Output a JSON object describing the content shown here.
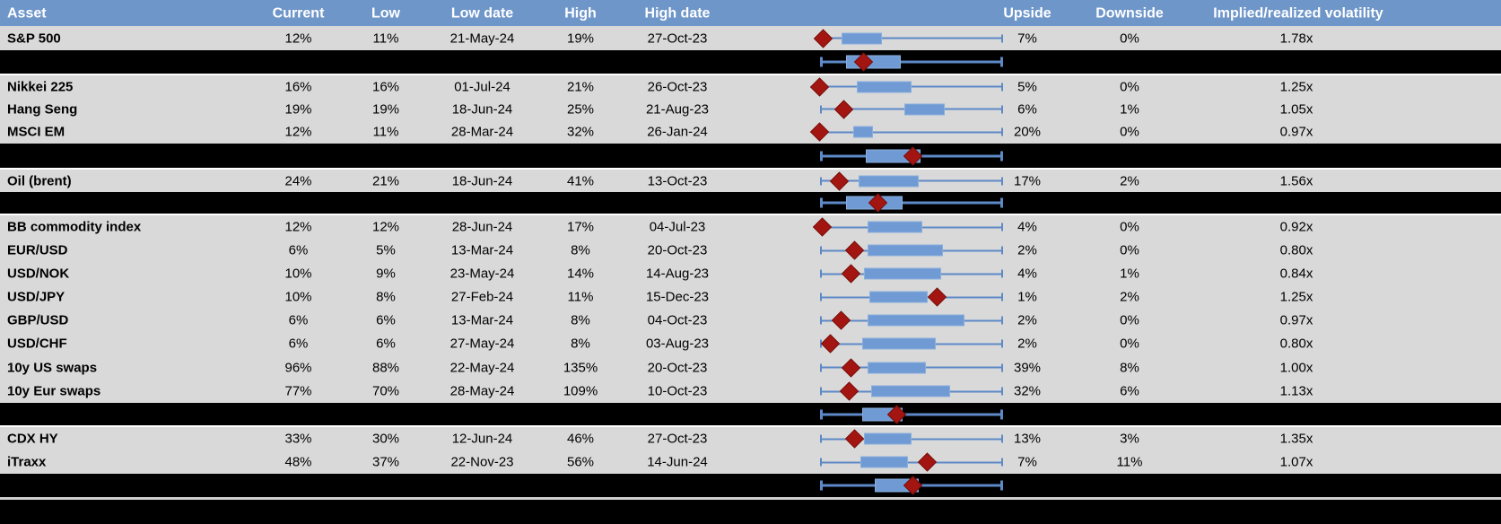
{
  "colors": {
    "header_bg": "#6e96c9",
    "header_text": "#ffffff",
    "row_bg": "#d9d9d9",
    "band_bg": "#000000",
    "box_fill": "#6f9ad3",
    "box_border": "#8aafdd",
    "whisker": "#5d89c7",
    "marker": "#a31511",
    "marker_border": "#76100c",
    "separator": "#cfcfcf"
  },
  "chart_data": {
    "type": "table",
    "columns": [
      "Asset",
      "Current",
      "Low",
      "Low date",
      "High",
      "High date",
      "Upside",
      "Downside",
      "Implied/realized volatility"
    ],
    "boxplot_units": "fraction of whisker span, 0 = left whisker end, 1 = right whisker end; marker = red diamond (current)",
    "rows": [
      {
        "kind": "asset",
        "cells": [
          "S&P 500",
          "12%",
          "11%",
          "21-May-24",
          "19%",
          "27-Oct-23",
          "7%",
          "0%",
          "1.78x"
        ],
        "box": {
          "whisker_lo": 0,
          "box_lo": 0.12,
          "box_hi": 0.34,
          "whisker_hi": 1,
          "marker": 0.02
        }
      },
      {
        "kind": "summary-chart",
        "cells": [],
        "box": {
          "whisker_lo": 0,
          "box_lo": 0.14,
          "box_hi": 0.44,
          "whisker_hi": 1,
          "marker": 0.24
        }
      },
      {
        "kind": "asset",
        "cells": [
          "Nikkei 225",
          "16%",
          "16%",
          "01-Jul-24",
          "21%",
          "26-Oct-23",
          "5%",
          "0%",
          "1.25x"
        ],
        "box": {
          "whisker_lo": 0,
          "box_lo": 0.2,
          "box_hi": 0.5,
          "whisker_hi": 1,
          "marker": 0.0
        }
      },
      {
        "kind": "asset",
        "cells": [
          "Hang Seng",
          "19%",
          "19%",
          "18-Jun-24",
          "25%",
          "21-Aug-23",
          "6%",
          "1%",
          "1.05x"
        ],
        "box": {
          "whisker_lo": 0,
          "box_lo": 0.46,
          "box_hi": 0.68,
          "whisker_hi": 1,
          "marker": 0.13
        }
      },
      {
        "kind": "asset",
        "cells": [
          "MSCI EM",
          "12%",
          "11%",
          "28-Mar-24",
          "32%",
          "26-Jan-24",
          "20%",
          "0%",
          "0.97x"
        ],
        "box": {
          "whisker_lo": 0,
          "box_lo": 0.18,
          "box_hi": 0.29,
          "whisker_hi": 1,
          "marker": 0.0
        }
      },
      {
        "kind": "summary-chart",
        "cells": [],
        "box": {
          "whisker_lo": 0,
          "box_lo": 0.25,
          "box_hi": 0.55,
          "whisker_hi": 1,
          "marker": 0.51
        }
      },
      {
        "kind": "asset",
        "cells": [
          "Oil (brent)",
          "24%",
          "21%",
          "18-Jun-24",
          "41%",
          "13-Oct-23",
          "17%",
          "2%",
          "1.56x"
        ],
        "box": {
          "whisker_lo": 0,
          "box_lo": 0.21,
          "box_hi": 0.54,
          "whisker_hi": 1,
          "marker": 0.11
        }
      },
      {
        "kind": "summary-chart",
        "cells": [],
        "box": {
          "whisker_lo": 0,
          "box_lo": 0.14,
          "box_hi": 0.45,
          "whisker_hi": 1,
          "marker": 0.32
        }
      },
      {
        "kind": "asset",
        "cells": [
          "BB commodity index",
          "12%",
          "12%",
          "28-Jun-24",
          "17%",
          "04-Jul-23",
          "4%",
          "0%",
          "0.92x"
        ],
        "box": {
          "whisker_lo": 0,
          "box_lo": 0.26,
          "box_hi": 0.56,
          "whisker_hi": 1,
          "marker": 0.015
        }
      },
      {
        "kind": "asset",
        "cells": [
          "EUR/USD",
          "6%",
          "5%",
          "13-Mar-24",
          "8%",
          "20-Oct-23",
          "2%",
          "0%",
          "0.80x"
        ],
        "box": {
          "whisker_lo": 0,
          "box_lo": 0.26,
          "box_hi": 0.67,
          "whisker_hi": 1,
          "marker": 0.19
        }
      },
      {
        "kind": "asset",
        "cells": [
          "USD/NOK",
          "10%",
          "9%",
          "23-May-24",
          "14%",
          "14-Aug-23",
          "4%",
          "1%",
          "0.84x"
        ],
        "box": {
          "whisker_lo": 0,
          "box_lo": 0.24,
          "box_hi": 0.66,
          "whisker_hi": 1,
          "marker": 0.17
        }
      },
      {
        "kind": "asset",
        "cells": [
          "USD/JPY",
          "10%",
          "8%",
          "27-Feb-24",
          "11%",
          "15-Dec-23",
          "1%",
          "2%",
          "1.25x"
        ],
        "box": {
          "whisker_lo": 0,
          "box_lo": 0.27,
          "box_hi": 0.59,
          "whisker_hi": 1,
          "marker": 0.64
        }
      },
      {
        "kind": "asset",
        "cells": [
          "GBP/USD",
          "6%",
          "6%",
          "13-Mar-24",
          "8%",
          "04-Oct-23",
          "2%",
          "0%",
          "0.97x"
        ],
        "box": {
          "whisker_lo": 0,
          "box_lo": 0.26,
          "box_hi": 0.79,
          "whisker_hi": 1,
          "marker": 0.12
        }
      },
      {
        "kind": "asset",
        "cells": [
          "USD/CHF",
          "6%",
          "6%",
          "27-May-24",
          "8%",
          "03-Aug-23",
          "2%",
          "0%",
          "0.80x"
        ],
        "box": {
          "whisker_lo": 0,
          "box_lo": 0.23,
          "box_hi": 0.63,
          "whisker_hi": 1,
          "marker": 0.06
        }
      },
      {
        "kind": "asset",
        "cells": [
          "10y US swaps",
          "96%",
          "88%",
          "22-May-24",
          "135%",
          "20-Oct-23",
          "39%",
          "8%",
          "1.00x"
        ],
        "box": {
          "whisker_lo": 0,
          "box_lo": 0.26,
          "box_hi": 0.58,
          "whisker_hi": 1,
          "marker": 0.17
        }
      },
      {
        "kind": "asset",
        "cells": [
          "10y Eur swaps",
          "77%",
          "70%",
          "28-May-24",
          "109%",
          "10-Oct-23",
          "32%",
          "6%",
          "1.13x"
        ],
        "box": {
          "whisker_lo": 0,
          "box_lo": 0.28,
          "box_hi": 0.71,
          "whisker_hi": 1,
          "marker": 0.16
        }
      },
      {
        "kind": "summary-chart",
        "cells": [],
        "box": {
          "whisker_lo": 0,
          "box_lo": 0.23,
          "box_hi": 0.45,
          "whisker_hi": 1,
          "marker": 0.42
        }
      },
      {
        "kind": "asset",
        "cells": [
          "CDX HY",
          "33%",
          "30%",
          "12-Jun-24",
          "46%",
          "27-Oct-23",
          "13%",
          "3%",
          "1.35x"
        ],
        "box": {
          "whisker_lo": 0,
          "box_lo": 0.24,
          "box_hi": 0.5,
          "whisker_hi": 1,
          "marker": 0.19
        }
      },
      {
        "kind": "asset",
        "cells": [
          "iTraxx",
          "48%",
          "37%",
          "22-Nov-23",
          "56%",
          "14-Jun-24",
          "7%",
          "11%",
          "1.07x"
        ],
        "box": {
          "whisker_lo": 0,
          "box_lo": 0.22,
          "box_hi": 0.48,
          "whisker_hi": 1,
          "marker": 0.59
        }
      },
      {
        "kind": "summary-chart",
        "cells": [],
        "box": {
          "whisker_lo": 0,
          "box_lo": 0.3,
          "box_hi": 0.54,
          "whisker_hi": 1,
          "marker": 0.51
        }
      }
    ]
  }
}
